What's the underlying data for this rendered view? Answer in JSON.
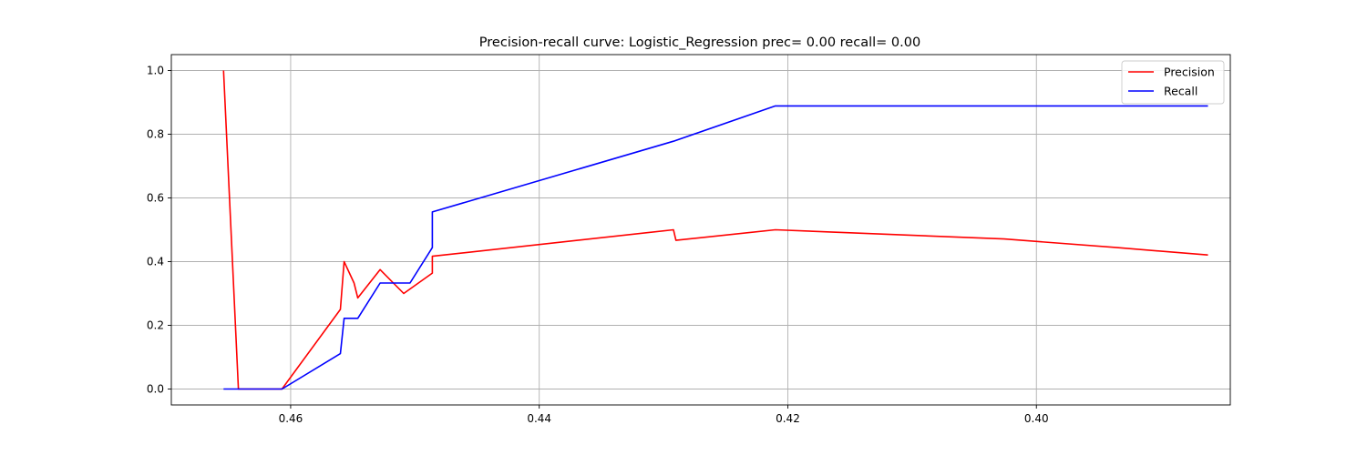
{
  "chart_data": {
    "type": "line",
    "title": "Precision-recall curve: Logistic_Regression prec= 0.00 recall= 0.00",
    "xlabel": "",
    "ylabel": "",
    "x_inverted": true,
    "xlim": [
      0.4696,
      0.3844
    ],
    "ylim": [
      -0.05,
      1.05
    ],
    "grid": true,
    "legend_position": "top-right",
    "x_ticks": [
      0.46,
      0.44,
      0.42,
      0.4
    ],
    "x_tick_labels": [
      "0.46",
      "0.44",
      "0.42",
      "0.40"
    ],
    "y_ticks": [
      0.0,
      0.2,
      0.4,
      0.6,
      0.8,
      1.0
    ],
    "y_tick_labels": [
      "0.0",
      "0.2",
      "0.4",
      "0.6",
      "0.8",
      "1.0"
    ],
    "series": [
      {
        "name": "Precision",
        "color": "#ff0000",
        "points": [
          [
            0.4654,
            1.0
          ],
          [
            0.4642,
            0.0
          ],
          [
            0.4607,
            0.0
          ],
          [
            0.456,
            0.25
          ],
          [
            0.4557,
            0.4
          ],
          [
            0.4549,
            0.333
          ],
          [
            0.4546,
            0.286
          ],
          [
            0.4528,
            0.375
          ],
          [
            0.4509,
            0.3
          ],
          [
            0.4486,
            0.364
          ],
          [
            0.4486,
            0.417
          ],
          [
            0.4292,
            0.5
          ],
          [
            0.429,
            0.467
          ],
          [
            0.421,
            0.5
          ],
          [
            0.4026,
            0.471
          ],
          [
            0.3935,
            0.444
          ],
          [
            0.3862,
            0.421
          ]
        ]
      },
      {
        "name": "Recall",
        "color": "#0000ff",
        "points": [
          [
            0.4654,
            0.0
          ],
          [
            0.4607,
            0.0
          ],
          [
            0.456,
            0.111
          ],
          [
            0.4557,
            0.222
          ],
          [
            0.4546,
            0.222
          ],
          [
            0.4528,
            0.333
          ],
          [
            0.4504,
            0.333
          ],
          [
            0.4486,
            0.444
          ],
          [
            0.4486,
            0.556
          ],
          [
            0.4292,
            0.778
          ],
          [
            0.421,
            0.889
          ],
          [
            0.3862,
            0.889
          ]
        ]
      }
    ]
  }
}
